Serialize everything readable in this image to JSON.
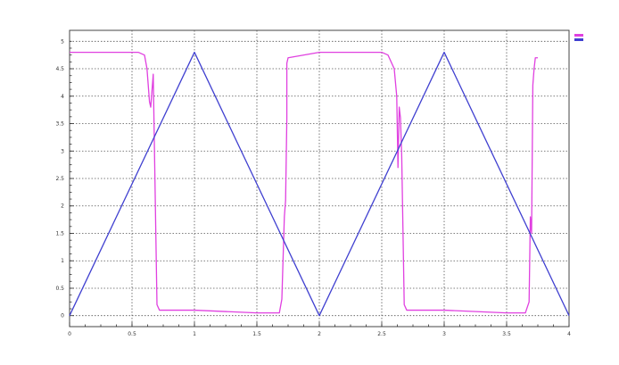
{
  "chart_data": {
    "type": "line",
    "title": "",
    "xlabel": "",
    "ylabel": "",
    "xlim": [
      0,
      4
    ],
    "ylim": [
      -0.2,
      5.2
    ],
    "grid": true,
    "x_ticks": [
      0,
      0.5,
      1,
      1.5,
      2,
      2.5,
      3,
      3.5,
      4
    ],
    "y_ticks": [
      0,
      0.5,
      1,
      1.5,
      2,
      2.5,
      3,
      3.5,
      4,
      4.5,
      5
    ],
    "legend": {
      "position": "top-right",
      "colors": [
        "#e040e0",
        "#4040d0"
      ]
    },
    "series": [
      {
        "color": "#e040e0",
        "x": [
          0,
          0.55,
          0.6,
          0.62,
          0.64,
          0.65,
          0.67,
          0.7,
          0.72,
          1.0,
          1.5,
          1.68,
          1.7,
          1.72,
          1.73,
          1.74,
          1.74,
          1.75,
          2.0,
          2.5,
          2.55,
          2.6,
          2.62,
          2.63,
          2.64,
          2.65,
          2.66,
          2.68,
          2.7,
          3.0,
          3.5,
          3.65,
          3.68,
          3.69,
          3.7,
          3.71,
          3.72,
          3.73,
          3.75
        ],
        "y": [
          4.8,
          4.8,
          4.75,
          4.5,
          3.9,
          3.8,
          4.4,
          0.2,
          0.1,
          0.1,
          0.05,
          0.05,
          0.3,
          1.8,
          2.1,
          3.6,
          4.6,
          4.7,
          4.8,
          4.8,
          4.75,
          4.5,
          4.0,
          2.7,
          3.8,
          3.6,
          2.9,
          0.2,
          0.1,
          0.1,
          0.05,
          0.05,
          0.25,
          1.8,
          1.5,
          4.2,
          4.5,
          4.7,
          4.7
        ]
      },
      {
        "color": "#4040d0",
        "x": [
          0,
          1,
          2,
          3,
          4
        ],
        "y": [
          0,
          4.8,
          0,
          4.8,
          0
        ]
      }
    ]
  }
}
